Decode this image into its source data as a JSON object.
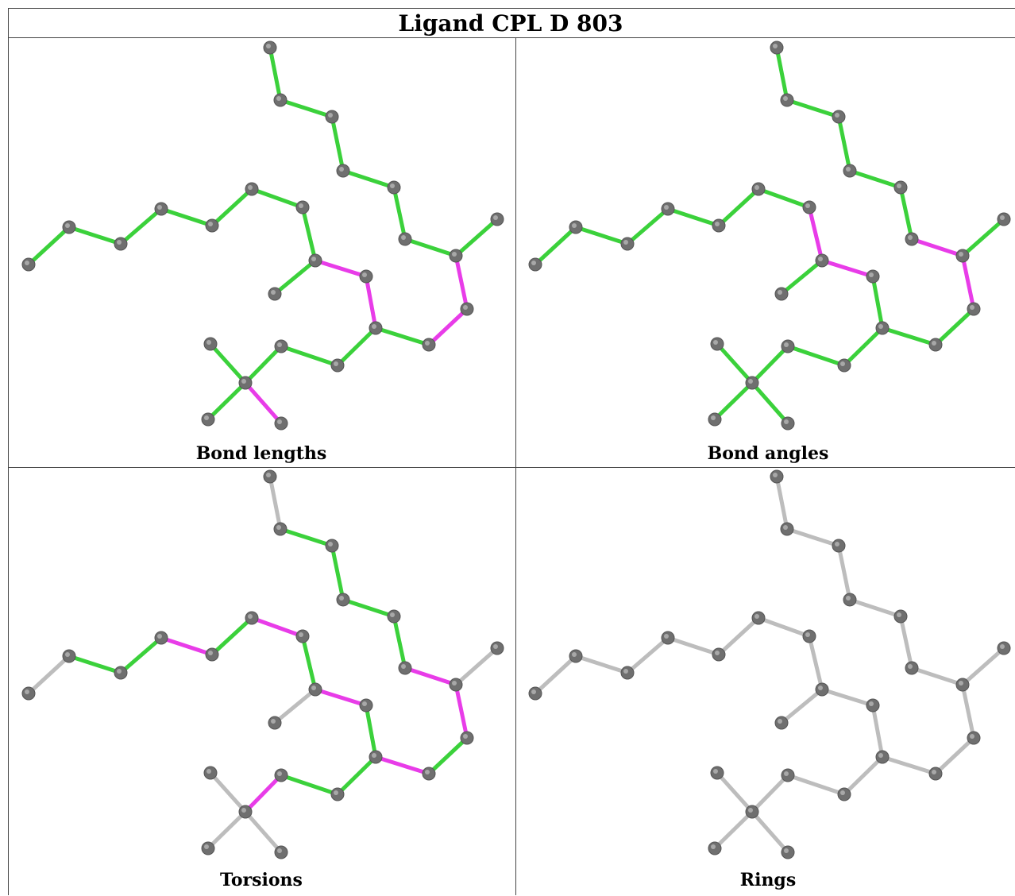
{
  "title": "Ligand CPL D 803",
  "colors": {
    "green": "#3bd13b",
    "magenta": "#e83ce8",
    "gray": "#bdbdbd",
    "atom": "#6f6f6f"
  },
  "panels": [
    {
      "caption": "Bond lengths"
    },
    {
      "caption": "Bond angles"
    },
    {
      "caption": "Torsions"
    },
    {
      "caption": "Rings"
    }
  ]
}
